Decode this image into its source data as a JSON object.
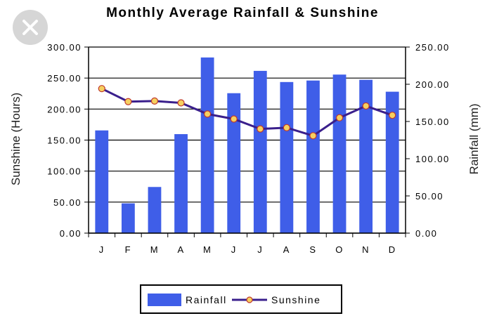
{
  "ui": {
    "close_icon": "close-icon"
  },
  "chart_data": {
    "type": "bar",
    "title": "Monthly Average Rainfall & Sunshine",
    "categories": [
      "J",
      "F",
      "M",
      "A",
      "M",
      "J",
      "J",
      "A",
      "S",
      "O",
      "N",
      "D"
    ],
    "series": [
      {
        "name": "Rainfall",
        "type": "bar",
        "axis": "right",
        "color": "#3f5ee8",
        "values": [
          138,
          40,
          62,
          133,
          236,
          188,
          218,
          203,
          205,
          213,
          206,
          190
        ]
      },
      {
        "name": "Sunshine",
        "type": "line",
        "axis": "left",
        "color": "#3a1f8c",
        "marker_color": "#f5d060",
        "values": [
          233,
          212,
          213,
          210,
          192,
          184,
          168,
          170,
          157,
          186,
          205,
          190
        ]
      }
    ],
    "ylabel_left": "Sunshine (Hours)",
    "ylabel_right": "Rainfall (mm)",
    "ylim_left": [
      0,
      300
    ],
    "ylim_right": [
      0,
      250
    ],
    "yticks_left": [
      "0.00",
      "50.00",
      "100.00",
      "150.00",
      "200.00",
      "250.00",
      "300.00"
    ],
    "yticks_right": [
      "0.00",
      "50.00",
      "100.00",
      "150.00",
      "200.00",
      "250.00"
    ],
    "grid": true,
    "legend": {
      "position": "bottom",
      "items": [
        "Rainfall",
        "Sunshine"
      ]
    }
  }
}
